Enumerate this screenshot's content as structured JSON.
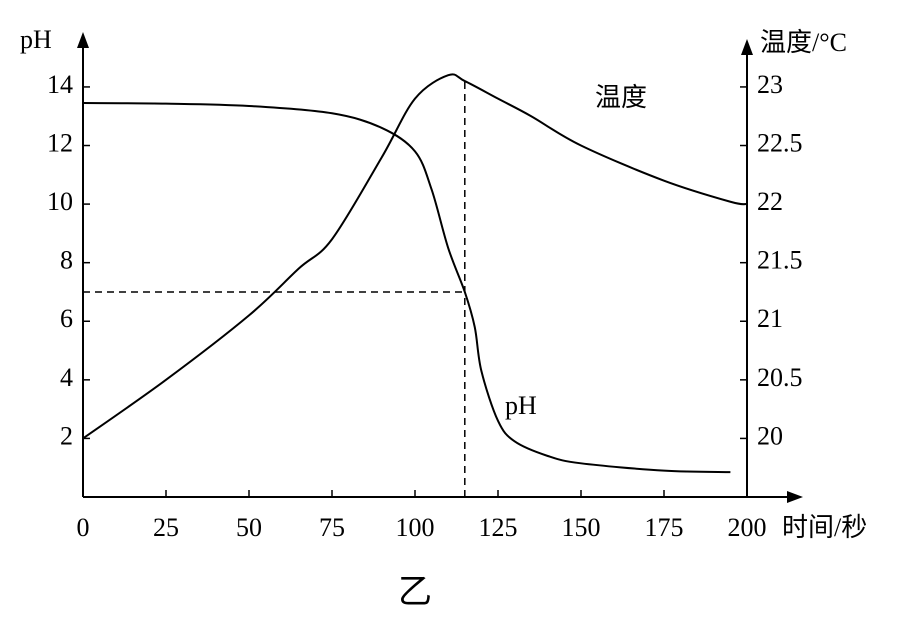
{
  "chart_data": {
    "type": "line",
    "title": "乙",
    "ylabel": "pH",
    "y2label": "温度/°C",
    "xlabel": "时间/秒",
    "xlim": [
      0,
      200
    ],
    "xticks": [
      0,
      25,
      50,
      75,
      100,
      125,
      150,
      175,
      200
    ],
    "ylim": [
      0,
      15.5
    ],
    "yticks": [
      2,
      4,
      6,
      8,
      10,
      12,
      14
    ],
    "y2lim": [
      19.5,
      23.375
    ],
    "y2ticks": [
      20,
      20.5,
      21,
      21.5,
      22,
      22.5,
      23
    ],
    "hline": 7,
    "vline": 115,
    "series": [
      {
        "name": "pH",
        "color": "#000000",
        "x": [
          0,
          25,
          50,
          75,
          90,
          100,
          105,
          110,
          115,
          118,
          120,
          125,
          130,
          140,
          150,
          175,
          195
        ],
        "values": [
          13.45,
          13.43,
          13.35,
          13.1,
          12.6,
          11.8,
          10.5,
          8.5,
          7,
          5.8,
          4.3,
          2.6,
          1.9,
          1.4,
          1.15,
          0.9,
          0.85
        ]
      },
      {
        "name": "温度",
        "color": "#000000",
        "axis": "y2",
        "x": [
          0,
          25,
          50,
          65,
          75,
          90,
          100,
          110,
          115,
          125,
          135,
          150,
          175,
          195,
          200
        ],
        "values": [
          20,
          20.5,
          21.05,
          21.45,
          21.7,
          22.4,
          22.9,
          23.1,
          23.05,
          22.9,
          22.75,
          22.5,
          22.2,
          22.02,
          22
        ]
      }
    ]
  }
}
